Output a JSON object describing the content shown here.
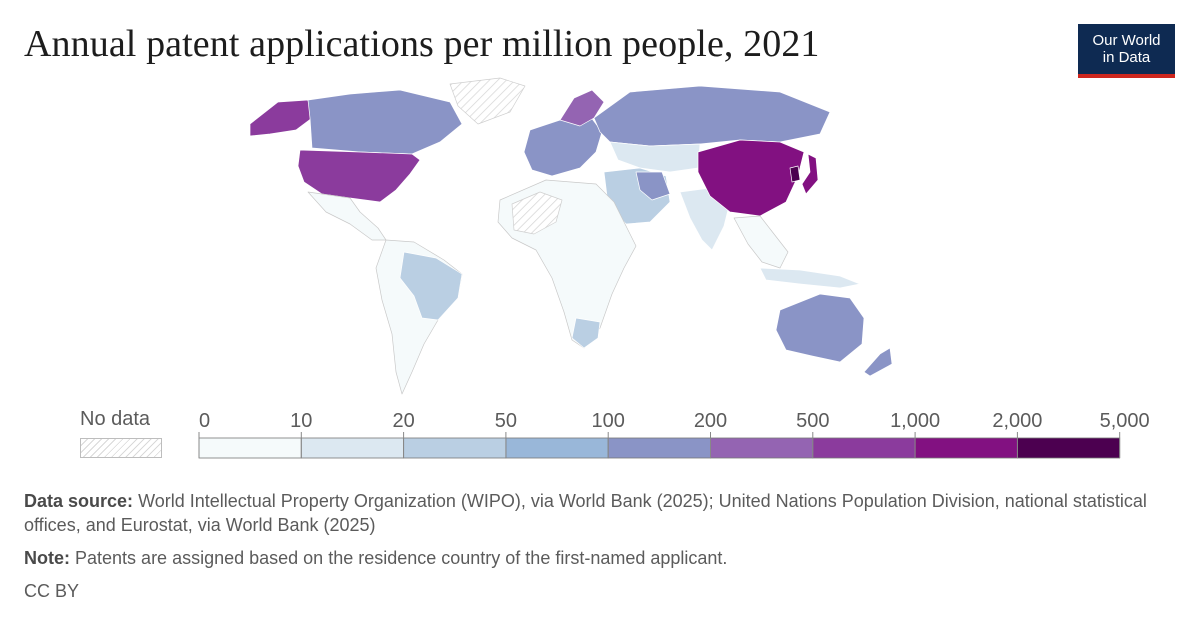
{
  "title": "Annual patent applications per million people, 2021",
  "logo": {
    "line1": "Our World",
    "line2": "in Data",
    "bg": "#0e2a52",
    "accent": "#ce261e"
  },
  "legend": {
    "no_data_label": "No data",
    "ticks": [
      "0",
      "10",
      "20",
      "50",
      "100",
      "200",
      "500",
      "1,000",
      "2,000",
      "5,000"
    ],
    "colors": [
      "#f5fafb",
      "#dce8f1",
      "#bacfe3",
      "#99b7d9",
      "#8a94c6",
      "#9464b2",
      "#8b3b9d",
      "#821181",
      "#4c0050"
    ]
  },
  "map_colors": {
    "no_data": "hatched",
    "china": "#821181",
    "korea": "#4c0050",
    "japan": "#821181",
    "usa": "#8b3b9d",
    "canada_russia_australia": "#8a94c6",
    "europe": "#8a94c6",
    "brazil_saudi_iran": "#bacfe3",
    "africa_most": "#f5fafb"
  },
  "footer": {
    "source_label": "Data source:",
    "source_text": "World Intellectual Property Organization (WIPO), via World Bank (2025); United Nations Population Division, national statistical offices, and Eurostat, via World Bank (2025)",
    "note_label": "Note:",
    "note_text": "Patents are assigned based on the residence country of the first-named applicant.",
    "license": "CC BY"
  }
}
